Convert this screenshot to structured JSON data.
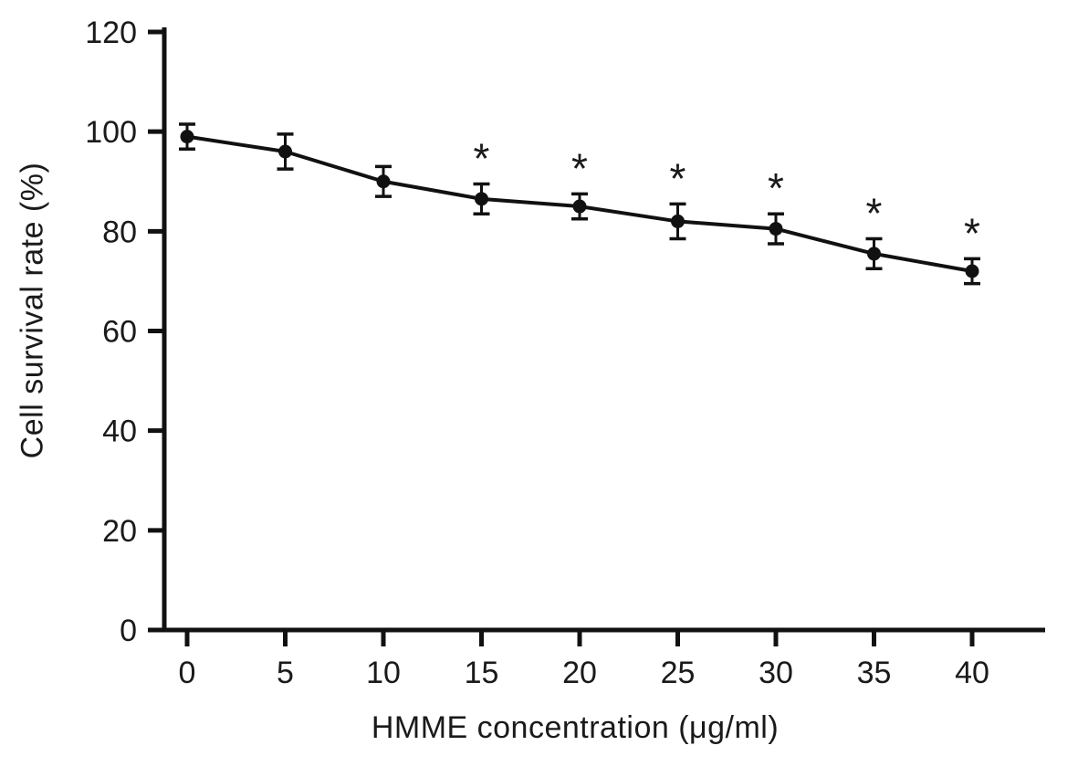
{
  "chart_data": {
    "type": "line",
    "title": "",
    "xlabel": "HMME concentration (μg/ml)",
    "ylabel": "Cell survival rate (%)",
    "x": [
      0,
      5,
      10,
      15,
      20,
      25,
      30,
      35,
      40
    ],
    "xticks": [
      0,
      5,
      10,
      15,
      20,
      25,
      30,
      35,
      40
    ],
    "yticks": [
      0,
      20,
      40,
      60,
      80,
      100,
      120
    ],
    "xlim": [
      0,
      44
    ],
    "ylim": [
      0,
      120
    ],
    "grid": false,
    "legend": null,
    "series": [
      {
        "name": "Cell survival rate",
        "values": [
          99,
          96,
          90,
          86.5,
          85,
          82,
          80.5,
          75.5,
          72
        ],
        "errors": [
          2.5,
          3.5,
          3,
          3,
          2.5,
          3.5,
          3,
          3,
          2.5
        ],
        "significant": [
          false,
          false,
          false,
          true,
          true,
          true,
          true,
          true,
          true
        ],
        "marker": "filled-circle",
        "line_style": "solid",
        "color": "#111111"
      }
    ],
    "annotations": {
      "significance_symbol": "*",
      "significance_applies_to_x": [
        15,
        20,
        25,
        30,
        35,
        40
      ]
    }
  },
  "style": {
    "background": "#ffffff",
    "axis_color": "#111111",
    "marker_color": "#111111",
    "text_color": "#1a1a1a"
  }
}
